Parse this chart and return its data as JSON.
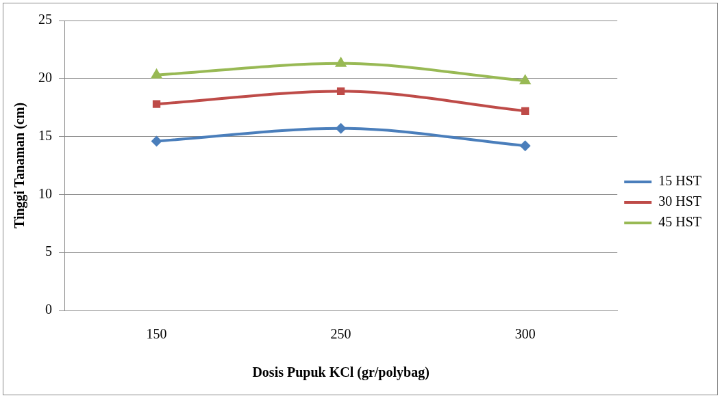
{
  "chart_data": {
    "type": "line",
    "xlabel": "Dosis Pupuk KCl (gr/polybag)",
    "ylabel": "Tinggi Tanaman (cm)",
    "categories": [
      "150",
      "250",
      "300"
    ],
    "series": [
      {
        "name": "15 HST",
        "color": "#4a7ebb",
        "marker": "diamond",
        "values": [
          14.6,
          15.7,
          14.2
        ]
      },
      {
        "name": "30 HST",
        "color": "#be4b48",
        "marker": "square",
        "values": [
          17.8,
          18.9,
          17.2
        ]
      },
      {
        "name": "45 HST",
        "color": "#98b954",
        "marker": "triangle",
        "values": [
          20.3,
          21.3,
          19.8
        ]
      }
    ],
    "ylim": [
      0,
      25
    ],
    "yticks": [
      0,
      5,
      10,
      15,
      20,
      25
    ],
    "grid": "y",
    "legend": "right"
  }
}
